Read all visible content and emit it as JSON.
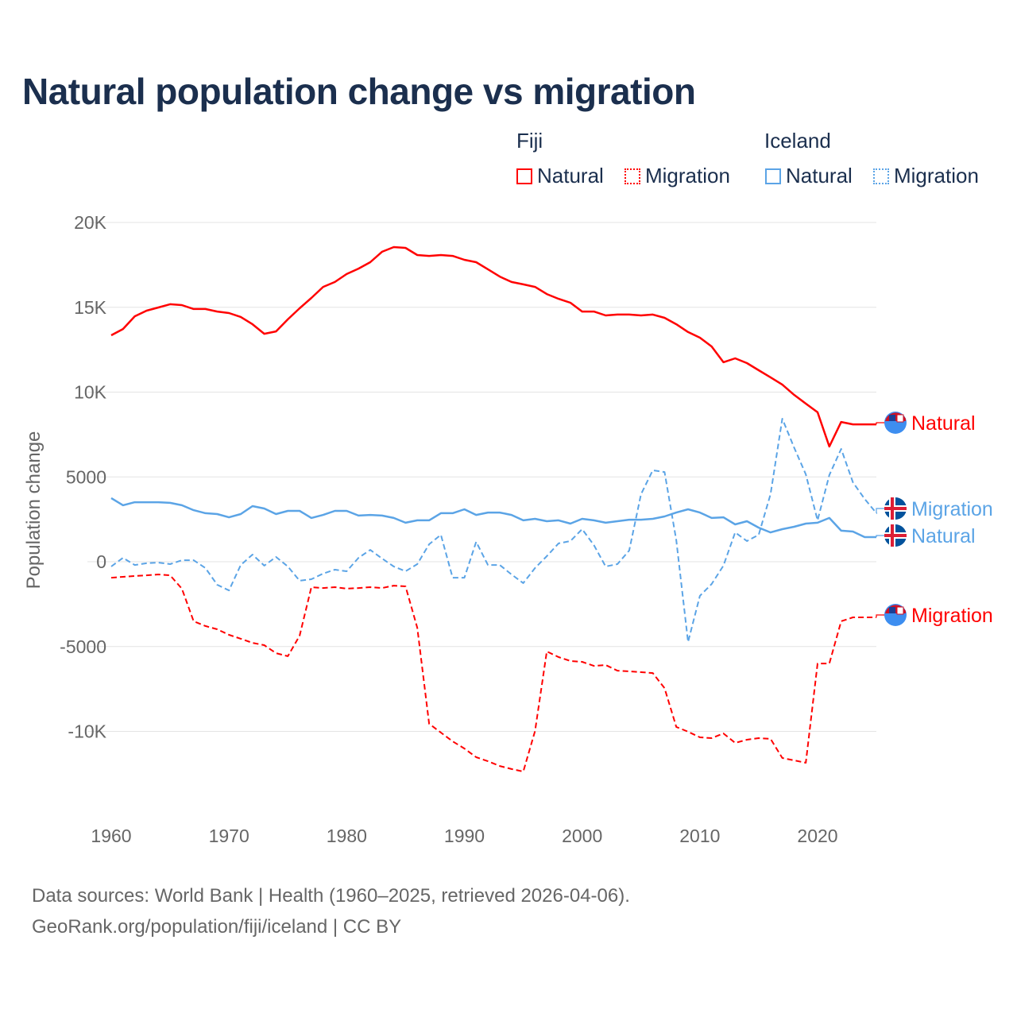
{
  "title": "Natural population change vs migration",
  "legend": {
    "groups": [
      {
        "name": "Fiji",
        "items": [
          "Natural",
          "Migration"
        ]
      },
      {
        "name": "Iceland",
        "items": [
          "Natural",
          "Migration"
        ]
      }
    ]
  },
  "colors": {
    "fiji": "#ff0000",
    "iceland": "#5ba4e6",
    "text": "#1b2f4e",
    "axis": "#666666",
    "grid": "#e3e3e3"
  },
  "footer": {
    "line1": "Data sources: World Bank | Health (1960–2025, retrieved 2026-04-06).",
    "line2": "GeoRank.org/population/fiji/iceland | CC BY"
  },
  "chart_data": {
    "type": "line",
    "title": "Natural population change vs migration",
    "xlabel": "",
    "ylabel": "Population change",
    "xlim": [
      1960,
      2025
    ],
    "ylim": [
      -14000,
      20000
    ],
    "xticks": [
      1960,
      1970,
      1980,
      1990,
      2000,
      2010,
      2020
    ],
    "xtick_labels": [
      "1960",
      "1970",
      "1980",
      "1990",
      "2000",
      "2010",
      "2020"
    ],
    "yticks": [
      20000,
      15000,
      10000,
      5000,
      0,
      -5000,
      -10000
    ],
    "ytick_labels": [
      "20K",
      "15K",
      "10K",
      "5000",
      "0",
      "-5000",
      "-10K"
    ],
    "grid": true,
    "legend_position": "top-right",
    "series": [
      {
        "name": "Natural",
        "country": "Fiji",
        "color": "#ff0000",
        "dash": false,
        "label": "Natural",
        "flag": "fiji-flag",
        "start": 1960,
        "values": [
          13350,
          13720,
          14470,
          14800,
          14990,
          15180,
          15130,
          14900,
          14900,
          14750,
          14660,
          14430,
          14000,
          13440,
          13580,
          14290,
          14940,
          15550,
          16200,
          16490,
          16960,
          17280,
          17660,
          18270,
          18550,
          18500,
          18080,
          18030,
          18080,
          18030,
          17800,
          17660,
          17240,
          16810,
          16490,
          16350,
          16200,
          15780,
          15500,
          15270,
          14750,
          14750,
          14520,
          14570,
          14570,
          14520,
          14570,
          14380,
          14000,
          13540,
          13210,
          12690,
          11760,
          11990,
          11710,
          11290,
          10870,
          10440,
          9840,
          9320,
          8810,
          6790,
          8240,
          8100
        ]
      },
      {
        "name": "Migration",
        "country": "Fiji",
        "color": "#ff0000",
        "dash": true,
        "label": "Migration",
        "flag": "fiji-flag",
        "start": 1960,
        "values": [
          -940,
          -890,
          -840,
          -800,
          -750,
          -800,
          -1590,
          -3510,
          -3790,
          -3980,
          -4310,
          -4540,
          -4780,
          -4920,
          -5390,
          -5570,
          -4360,
          -1500,
          -1550,
          -1500,
          -1590,
          -1550,
          -1500,
          -1550,
          -1410,
          -1450,
          -3890,
          -9550,
          -10070,
          -10590,
          -11010,
          -11520,
          -11760,
          -12040,
          -12220,
          -12370,
          -9980,
          -5290,
          -5620,
          -5850,
          -5900,
          -6140,
          -6090,
          -6420,
          -6460,
          -6510,
          -6560,
          -7450,
          -9740,
          -10020,
          -10350,
          -10400,
          -10120,
          -10680,
          -10490,
          -10400,
          -10440,
          -11570,
          -11710,
          -11850,
          -6000,
          -6000,
          -3510,
          -3280,
          -3280
        ]
      },
      {
        "name": "Natural",
        "country": "Iceland",
        "color": "#5ba4e6",
        "dash": false,
        "label": "Natural",
        "flag": "iceland-flag",
        "start": 1960,
        "values": [
          3750,
          3330,
          3510,
          3510,
          3510,
          3470,
          3330,
          3040,
          2860,
          2810,
          2620,
          2810,
          3280,
          3140,
          2810,
          3000,
          3000,
          2580,
          2760,
          3000,
          3000,
          2720,
          2760,
          2720,
          2580,
          2300,
          2440,
          2440,
          2860,
          2860,
          3090,
          2760,
          2900,
          2900,
          2760,
          2440,
          2530,
          2390,
          2440,
          2250,
          2530,
          2440,
          2300,
          2390,
          2480,
          2480,
          2530,
          2670,
          2900,
          3090,
          2900,
          2580,
          2620,
          2200,
          2390,
          2010,
          1730,
          1920,
          2060,
          2250,
          2300,
          2580,
          1830,
          1780,
          1450
        ]
      },
      {
        "name": "Migration",
        "country": "Iceland",
        "color": "#5ba4e6",
        "dash": true,
        "label": "Migration",
        "flag": "iceland-flag",
        "start": 1960,
        "values": [
          -280,
          230,
          -190,
          -90,
          -50,
          -140,
          90,
          90,
          -370,
          -1360,
          -1690,
          -190,
          420,
          -230,
          280,
          -280,
          -1120,
          -1030,
          -700,
          -470,
          -560,
          230,
          700,
          190,
          -280,
          -560,
          -140,
          1030,
          1590,
          -940,
          -940,
          1170,
          -190,
          -190,
          -750,
          -1260,
          -370,
          330,
          1080,
          1220,
          1920,
          980,
          -280,
          -140,
          660,
          3980,
          5390,
          5290,
          1260,
          -4730,
          -2010,
          -1310,
          -230,
          1730,
          1220,
          1590,
          3980,
          8430,
          6740,
          5150,
          2440,
          5110,
          6650,
          4680,
          3700,
          2860
        ]
      }
    ]
  }
}
